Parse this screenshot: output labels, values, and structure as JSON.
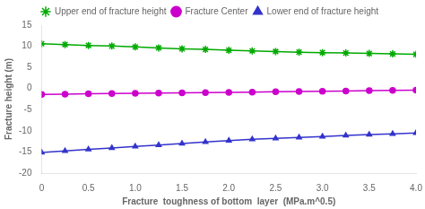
{
  "chart_data": {
    "type": "line",
    "x_label": "Fracture  toughness of bottom  layer  (MPa.m^0.5)",
    "y_label": "Fracture height (m)",
    "x": [
      0.0,
      0.25,
      0.5,
      0.75,
      1.0,
      1.25,
      1.5,
      1.75,
      2.0,
      2.25,
      2.5,
      2.75,
      3.0,
      3.25,
      3.5,
      3.75,
      4.0
    ],
    "series": [
      {
        "name": "Upper end of fracture height",
        "color": "#00aa00",
        "marker": "star",
        "values": [
          10.6,
          10.4,
          10.2,
          10.05,
          9.85,
          9.6,
          9.4,
          9.25,
          9.05,
          8.9,
          8.75,
          8.6,
          8.5,
          8.4,
          8.3,
          8.2,
          8.1
        ]
      },
      {
        "name": "Fracture Center",
        "color": "#cc00cc",
        "marker": "circle",
        "values": [
          -1.4,
          -1.35,
          -1.25,
          -1.2,
          -1.1,
          -1.05,
          -1.0,
          -0.95,
          -0.9,
          -0.85,
          -0.75,
          -0.7,
          -0.65,
          -0.6,
          -0.5,
          -0.45,
          -0.4
        ]
      },
      {
        "name": "Lower end of fracture height",
        "color": "#3333cc",
        "marker": "triangle",
        "values": [
          -15.1,
          -14.75,
          -14.4,
          -14.05,
          -13.7,
          -13.35,
          -13.0,
          -12.65,
          -12.3,
          -12.0,
          -11.8,
          -11.55,
          -11.35,
          -11.1,
          -10.9,
          -10.7,
          -10.5
        ]
      }
    ],
    "xlim": [
      0,
      4.0
    ],
    "xticks": [
      0,
      0.5,
      {
        "value": 1,
        "label": "1.0"
      },
      1.5,
      {
        "value": 2,
        "label": "2.0"
      },
      2.5,
      {
        "value": 3,
        "label": "3.0"
      },
      3.5,
      {
        "value": 4,
        "label": "4.0"
      }
    ],
    "ylim": [
      -20,
      15
    ],
    "yticks": [
      -20,
      -15,
      -10,
      -5,
      0,
      5,
      10,
      15
    ],
    "grid": false,
    "legend": "top"
  }
}
